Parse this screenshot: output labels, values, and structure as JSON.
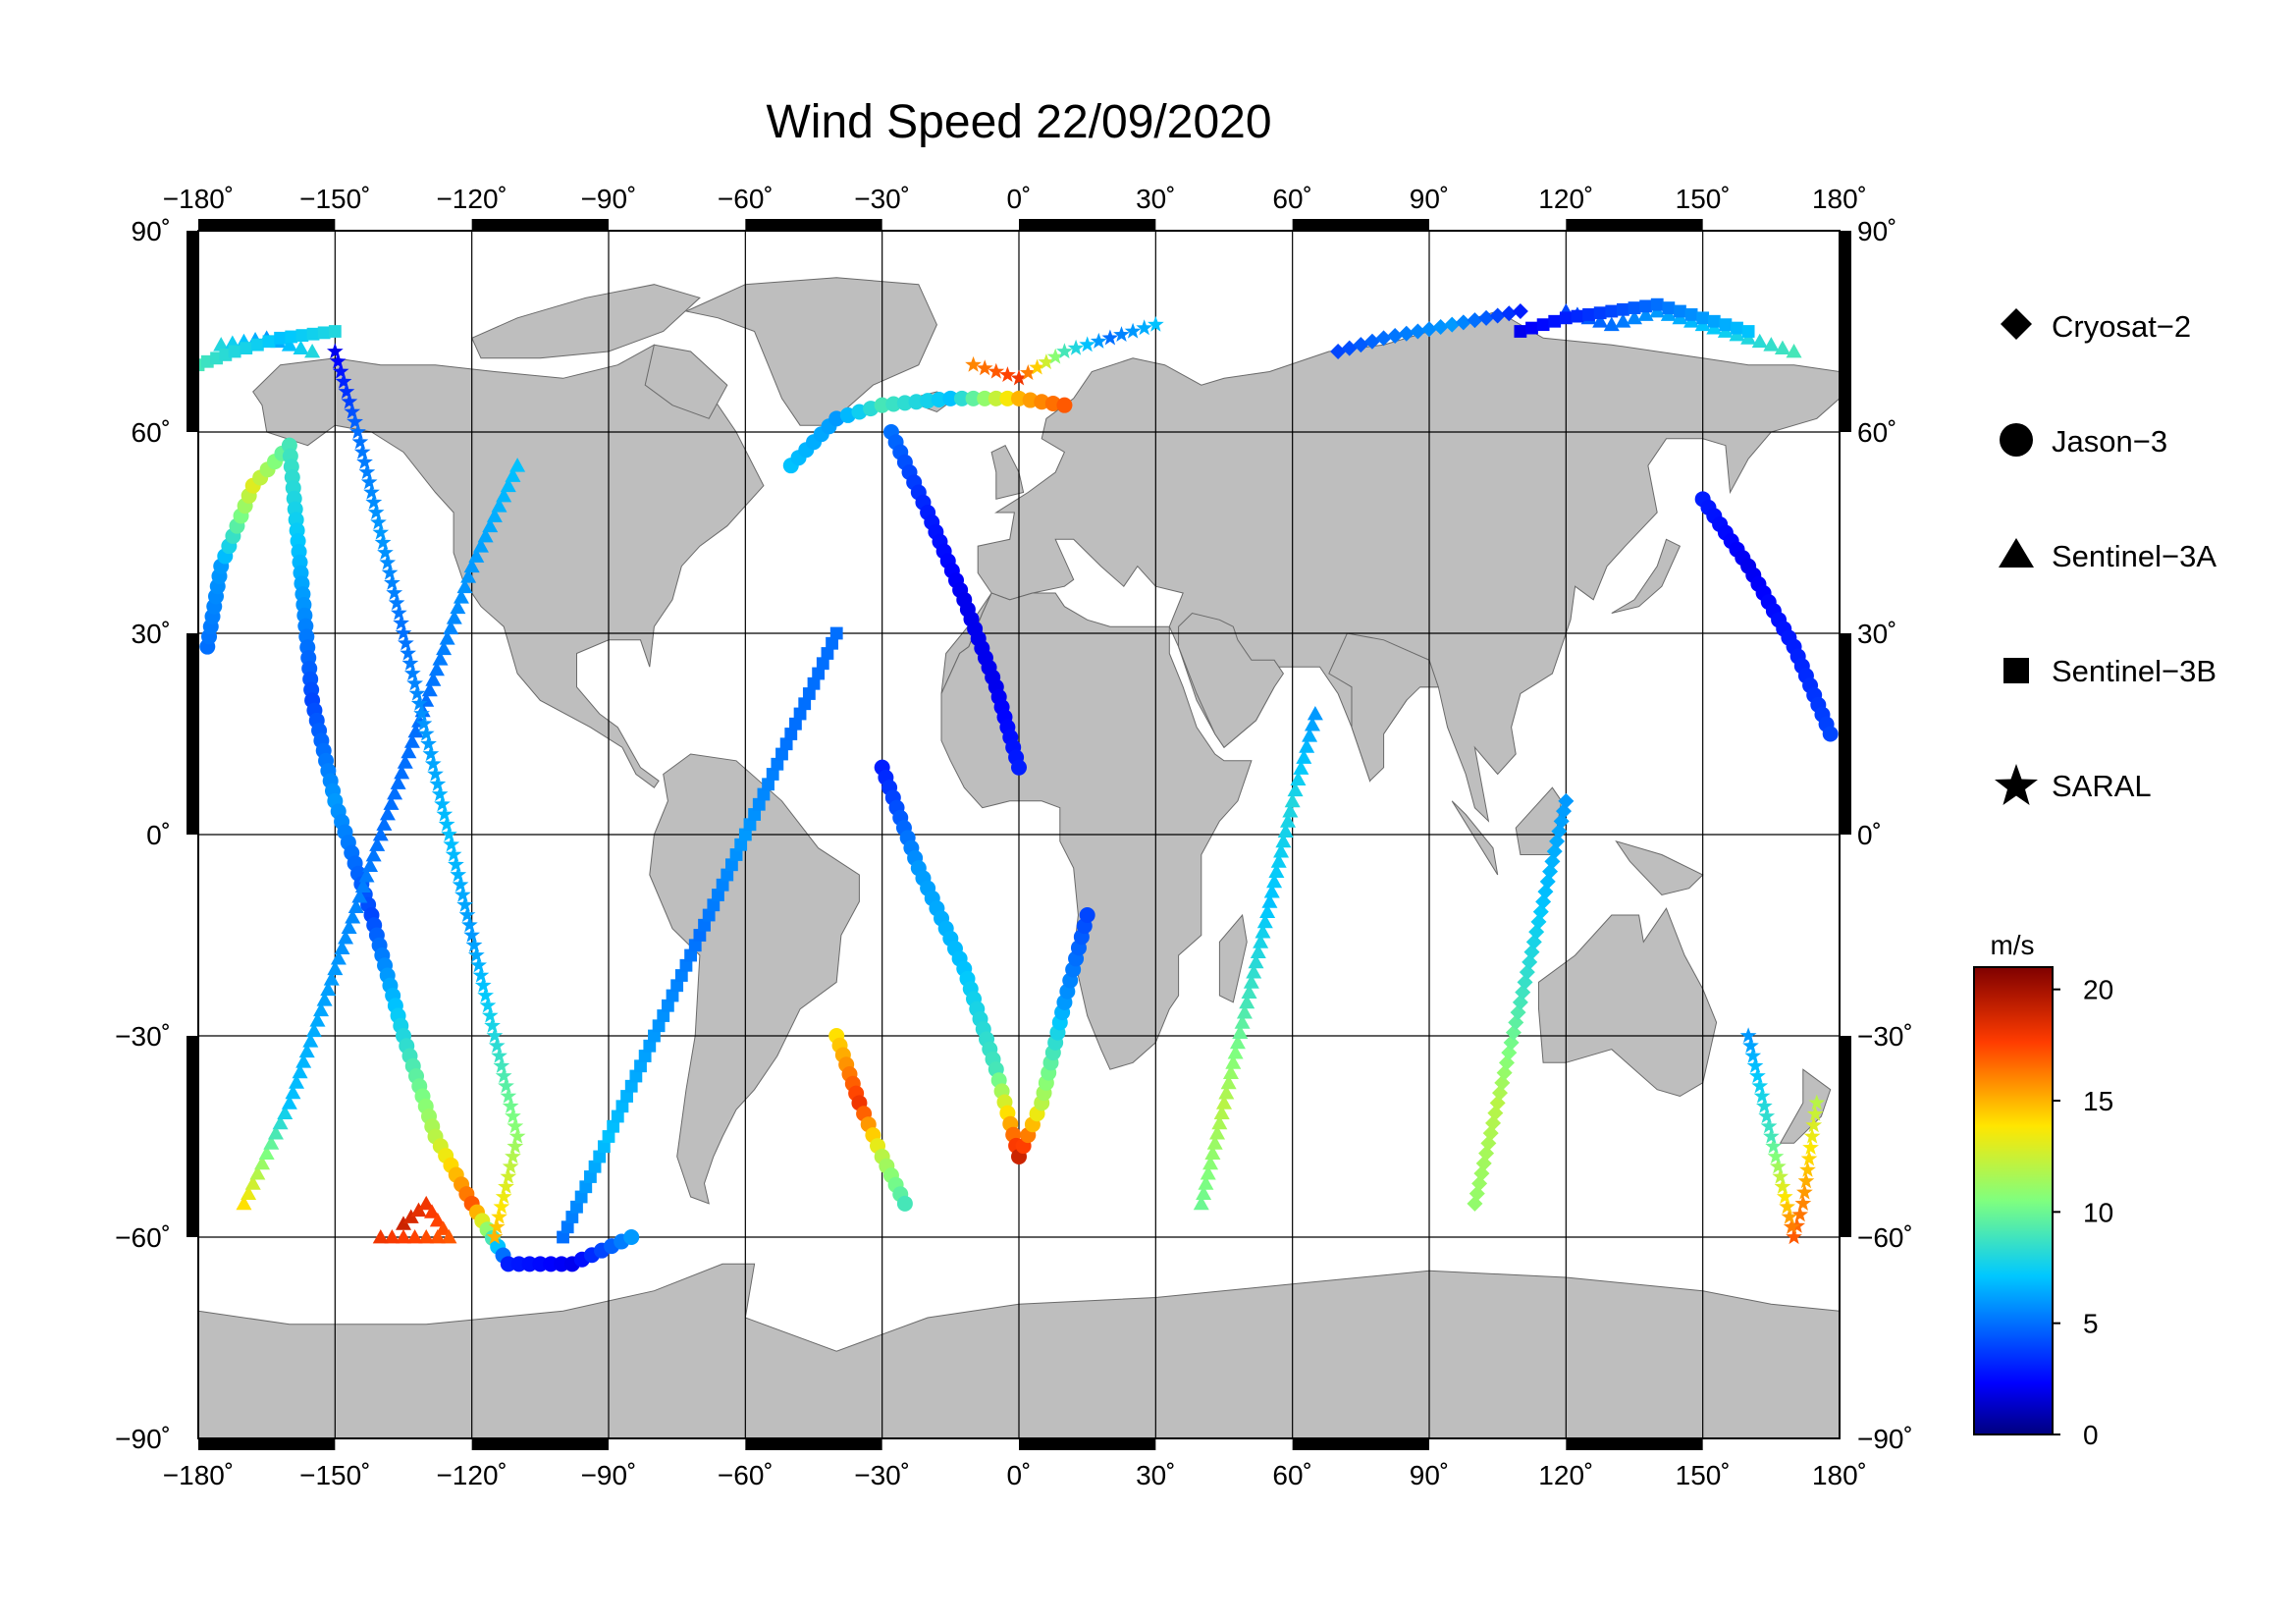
{
  "title": "Wind Speed 22/09/2020",
  "axes": {
    "lon_ticks": [
      -180,
      -150,
      -120,
      -90,
      -60,
      -30,
      0,
      30,
      60,
      90,
      120,
      150,
      180
    ],
    "lat_ticks": [
      90,
      60,
      30,
      0,
      -30,
      -60,
      -90
    ],
    "lon_labels": [
      "−180˚",
      "−150˚",
      "−120˚",
      "−90˚",
      "−60˚",
      "−30˚",
      "0˚",
      "30˚",
      "60˚",
      "90˚",
      "120˚",
      "150˚",
      "180˚"
    ],
    "lat_labels": [
      "90˚",
      "60˚",
      "30˚",
      "0˚",
      "−30˚",
      "−60˚",
      "−90˚"
    ]
  },
  "legend": {
    "items": [
      {
        "label": "Cryosat−2",
        "marker": "diamond"
      },
      {
        "label": "Jason−3",
        "marker": "circle"
      },
      {
        "label": "Sentinel−3A",
        "marker": "triangle"
      },
      {
        "label": "Sentinel−3B",
        "marker": "square"
      },
      {
        "label": "SARAL",
        "marker": "star"
      }
    ]
  },
  "colorbar": {
    "unit": "m/s",
    "min": 0,
    "max": 21,
    "ticks": [
      20,
      15,
      10,
      5,
      0
    ],
    "tick_labels": [
      "20",
      "15",
      "10",
      "5",
      "0"
    ]
  },
  "colors": {
    "land": "#bebebe",
    "ocean": "#ffffff",
    "frame": "#000000"
  },
  "chart_data": {
    "type": "scatter",
    "title": "Wind Speed 22/09/2020",
    "xlim": [
      -180,
      180
    ],
    "ylim": [
      -90,
      90
    ],
    "color_unit": "m/s",
    "color_range": [
      0,
      21
    ],
    "tracks": [
      {
        "satellite": "Jason-3",
        "points": [
          [
            -178,
            28,
            5
          ],
          [
            -175,
            40,
            6
          ],
          [
            -168,
            52,
            13
          ],
          [
            -160,
            58,
            9
          ],
          [
            -155,
            20,
            4
          ],
          [
            -150,
            5,
            6
          ],
          [
            -142,
            -12,
            4
          ],
          [
            -135,
            -30,
            8
          ],
          [
            -128,
            -45,
            12
          ],
          [
            -120,
            -55,
            17
          ],
          [
            -112,
            -64,
            3
          ],
          [
            -98,
            -64,
            2
          ],
          [
            -85,
            -60,
            6
          ]
        ]
      },
      {
        "satellite": "Jason-3",
        "points": [
          [
            -30,
            10,
            3
          ],
          [
            -22,
            -5,
            6
          ],
          [
            -12,
            -20,
            7
          ],
          [
            -5,
            -35,
            9
          ],
          [
            0,
            -48,
            19
          ],
          [
            5,
            -40,
            12
          ],
          [
            10,
            -25,
            6
          ],
          [
            15,
            -12,
            4
          ]
        ]
      },
      {
        "satellite": "Jason-3",
        "points": [
          [
            -50,
            55,
            7
          ],
          [
            -40,
            62,
            6
          ],
          [
            -30,
            64,
            9
          ],
          [
            -15,
            65,
            7
          ],
          [
            0,
            65,
            15
          ],
          [
            10,
            64,
            17
          ]
        ]
      },
      {
        "satellite": "Jason-3",
        "points": [
          [
            -28,
            60,
            5
          ],
          [
            -20,
            48,
            3
          ],
          [
            -12,
            35,
            2
          ],
          [
            -5,
            22,
            2
          ],
          [
            0,
            10,
            3
          ]
        ]
      },
      {
        "satellite": "Jason-3",
        "points": [
          [
            150,
            50,
            3
          ],
          [
            160,
            40,
            2
          ],
          [
            170,
            28,
            3
          ],
          [
            178,
            15,
            4
          ]
        ]
      },
      {
        "satellite": "Jason-3",
        "points": [
          [
            -40,
            -30,
            14
          ],
          [
            -35,
            -40,
            18
          ],
          [
            -30,
            -48,
            12
          ],
          [
            -25,
            -55,
            9
          ]
        ]
      },
      {
        "satellite": "Sentinel-3A",
        "points": [
          [
            -175,
            73,
            8
          ],
          [
            -165,
            74,
            6
          ],
          [
            -155,
            72,
            8
          ]
        ]
      },
      {
        "satellite": "Sentinel-3A",
        "points": [
          [
            -170,
            -55,
            14
          ],
          [
            -160,
            -40,
            7
          ],
          [
            -150,
            -20,
            6
          ],
          [
            -140,
            0,
            5
          ],
          [
            -130,
            20,
            5
          ],
          [
            -120,
            40,
            6
          ],
          [
            -110,
            55,
            7
          ]
        ]
      },
      {
        "satellite": "Sentinel-3A",
        "points": [
          [
            -135,
            -58,
            19
          ],
          [
            -130,
            -55,
            18
          ],
          [
            -125,
            -60,
            17
          ],
          [
            -140,
            -60,
            18
          ]
        ]
      },
      {
        "satellite": "Sentinel-3A",
        "points": [
          [
            40,
            -55,
            10
          ],
          [
            45,
            -40,
            12
          ],
          [
            50,
            -25,
            9
          ],
          [
            55,
            -10,
            7
          ],
          [
            60,
            5,
            8
          ],
          [
            65,
            18,
            6
          ]
        ]
      },
      {
        "satellite": "Sentinel-3A",
        "points": [
          [
            120,
            78,
            4
          ],
          [
            130,
            76,
            5
          ],
          [
            140,
            78,
            6
          ],
          [
            150,
            76,
            7
          ],
          [
            160,
            74,
            8
          ],
          [
            170,
            72,
            9
          ]
        ]
      },
      {
        "satellite": "Sentinel-3B",
        "points": [
          [
            -180,
            70,
            9
          ],
          [
            -172,
            72,
            8
          ],
          [
            -162,
            74,
            7
          ],
          [
            -150,
            75,
            8
          ]
        ]
      },
      {
        "satellite": "Sentinel-3B",
        "points": [
          [
            110,
            75,
            2
          ],
          [
            120,
            77,
            3
          ],
          [
            130,
            78,
            4
          ],
          [
            140,
            79,
            5
          ],
          [
            150,
            77,
            6
          ],
          [
            160,
            75,
            7
          ]
        ]
      },
      {
        "satellite": "Sentinel-3B",
        "points": [
          [
            -100,
            -60,
            5
          ],
          [
            -90,
            -45,
            7
          ],
          [
            -80,
            -30,
            6
          ],
          [
            -70,
            -15,
            5
          ],
          [
            -60,
            0,
            6
          ],
          [
            -50,
            15,
            5
          ],
          [
            -40,
            30,
            5
          ]
        ]
      },
      {
        "satellite": "Cryosat-2",
        "points": [
          [
            70,
            72,
            4
          ],
          [
            80,
            74,
            5
          ],
          [
            95,
            76,
            6
          ],
          [
            110,
            78,
            3
          ]
        ]
      },
      {
        "satellite": "Cryosat-2",
        "points": [
          [
            100,
            -55,
            11
          ],
          [
            105,
            -40,
            12
          ],
          [
            110,
            -25,
            9
          ],
          [
            115,
            -10,
            7
          ],
          [
            120,
            5,
            6
          ]
        ]
      },
      {
        "satellite": "SARAL",
        "points": [
          [
            -10,
            70,
            16
          ],
          [
            0,
            68,
            18
          ],
          [
            10,
            72,
            9
          ],
          [
            20,
            74,
            5
          ],
          [
            30,
            76,
            7
          ]
        ]
      },
      {
        "satellite": "SARAL",
        "points": [
          [
            -150,
            72,
            2
          ],
          [
            -145,
            60,
            5
          ],
          [
            -140,
            45,
            6
          ],
          [
            -135,
            30,
            5
          ],
          [
            -130,
            15,
            6
          ],
          [
            -125,
            0,
            7
          ],
          [
            -120,
            -15,
            6
          ],
          [
            -115,
            -30,
            8
          ],
          [
            -110,
            -45,
            11
          ],
          [
            -115,
            -60,
            15
          ]
        ]
      },
      {
        "satellite": "SARAL",
        "points": [
          [
            175,
            -40,
            12
          ],
          [
            172,
            -55,
            16
          ],
          [
            170,
            -60,
            17
          ],
          [
            165,
            -45,
            9
          ],
          [
            160,
            -30,
            6
          ]
        ]
      }
    ]
  }
}
